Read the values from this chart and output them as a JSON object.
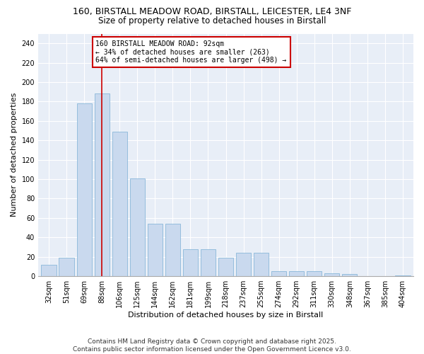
{
  "title_line1": "160, BIRSTALL MEADOW ROAD, BIRSTALL, LEICESTER, LE4 3NF",
  "title_line2": "Size of property relative to detached houses in Birstall",
  "xlabel": "Distribution of detached houses by size in Birstall",
  "ylabel": "Number of detached properties",
  "categories": [
    "32sqm",
    "51sqm",
    "69sqm",
    "88sqm",
    "106sqm",
    "125sqm",
    "144sqm",
    "162sqm",
    "181sqm",
    "199sqm",
    "218sqm",
    "237sqm",
    "255sqm",
    "274sqm",
    "292sqm",
    "311sqm",
    "330sqm",
    "348sqm",
    "367sqm",
    "385sqm",
    "404sqm"
  ],
  "values": [
    12,
    19,
    178,
    188,
    149,
    101,
    54,
    54,
    28,
    28,
    19,
    24,
    24,
    5,
    5,
    5,
    3,
    2,
    0,
    0,
    1
  ],
  "bar_color": "#c9d9ee",
  "bar_edge_color": "#7aafd4",
  "vline_x_index": 3,
  "vline_color": "#cc0000",
  "annotation_text": "160 BIRSTALL MEADOW ROAD: 92sqm\n← 34% of detached houses are smaller (263)\n64% of semi-detached houses are larger (498) →",
  "annotation_box_color": "#ffffff",
  "annotation_box_edge_color": "#cc0000",
  "ylim": [
    0,
    250
  ],
  "yticks": [
    0,
    20,
    40,
    60,
    80,
    100,
    120,
    140,
    160,
    180,
    200,
    220,
    240
  ],
  "footnote": "Contains HM Land Registry data © Crown copyright and database right 2025.\nContains public sector information licensed under the Open Government Licence v3.0.",
  "bg_color": "#ffffff",
  "plot_bg_color": "#e8eef7",
  "title_fontsize": 9,
  "subtitle_fontsize": 8.5,
  "axis_label_fontsize": 8,
  "tick_fontsize": 7,
  "footnote_fontsize": 6.5,
  "annotation_fontsize": 7
}
